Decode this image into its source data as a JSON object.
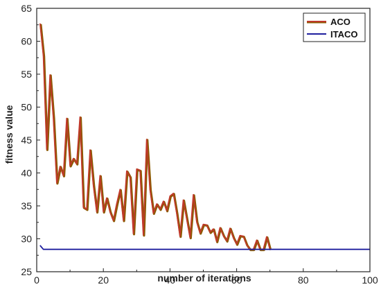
{
  "chart_data": {
    "type": "line",
    "title": "",
    "xlabel": "number of iterations",
    "ylabel": "fitness value",
    "xlim": [
      0,
      100
    ],
    "ylim": [
      25,
      65
    ],
    "xticks": [
      0,
      20,
      40,
      60,
      80,
      100
    ],
    "yticks": [
      25,
      30,
      35,
      40,
      45,
      50,
      55,
      60,
      65
    ],
    "grid": false,
    "legend_position": "top-right",
    "series": [
      {
        "name": "ACO",
        "color": "#c0392b",
        "shadow_color": "#8b5a00",
        "x": [
          1,
          2,
          3,
          4,
          5,
          6,
          7,
          8,
          9,
          10,
          11,
          12,
          13,
          14,
          15,
          16,
          17,
          18,
          19,
          20,
          21,
          22,
          23,
          24,
          25,
          26,
          27,
          28,
          29,
          30,
          31,
          32,
          33,
          34,
          35,
          36,
          37,
          38,
          39,
          40,
          41,
          42,
          43,
          44,
          45,
          46,
          47,
          48,
          49,
          50,
          51,
          52,
          53,
          54,
          55,
          56,
          57,
          58,
          59,
          60,
          61,
          62,
          63,
          64,
          65,
          66,
          67,
          68,
          69,
          70
        ],
        "y": [
          62.7,
          57.8,
          43.6,
          54.9,
          48.4,
          38.5,
          41.0,
          39.6,
          48.3,
          41.1,
          42.2,
          41.4,
          48.5,
          34.8,
          34.5,
          43.5,
          38.1,
          34.1,
          39.6,
          34.1,
          36.2,
          34.1,
          32.8,
          35.3,
          37.5,
          32.8,
          40.3,
          39.4,
          30.8,
          40.6,
          40.4,
          30.6,
          45.1,
          37.5,
          33.9,
          35.3,
          34.5,
          35.7,
          34.3,
          36.5,
          36.9,
          33.9,
          30.4,
          35.9,
          33.0,
          30.2,
          36.7,
          32.6,
          30.9,
          32.2,
          32.1,
          31.0,
          31.5,
          29.6,
          31.7,
          30.5,
          29.7,
          31.6,
          30.2,
          29.2,
          30.5,
          30.4,
          29.1,
          28.4,
          28.4,
          29.8,
          28.4,
          28.4,
          30.3,
          28.4
        ]
      },
      {
        "name": "ITACO",
        "color": "#1f1f9e",
        "x": [
          1,
          2,
          100
        ],
        "y": [
          29.0,
          28.4,
          28.4
        ]
      }
    ]
  }
}
